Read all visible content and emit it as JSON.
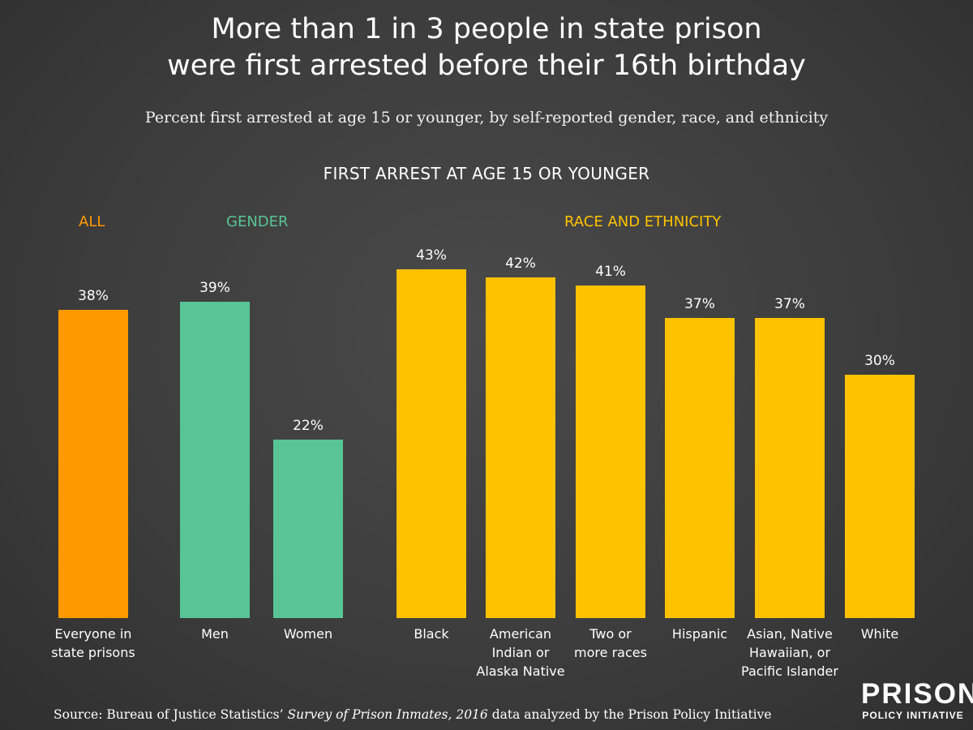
{
  "header": {
    "title_line1": "More than 1 in 3 people in state prison",
    "title_line2": "were first arrested before their 16th birthday",
    "subtitle": "Percent first arrested at age 15 or younger, by self-reported gender, race, and ethnicity",
    "section_title": "FIRST ARREST AT AGE 15 OR YOUNGER"
  },
  "groups": [
    {
      "label": "ALL",
      "color": "#ff9900"
    },
    {
      "label": "GENDER",
      "color": "#57c596"
    },
    {
      "label": "RACE AND ETHNICITY",
      "color": "#ffc200"
    }
  ],
  "chart_data": {
    "type": "bar",
    "title": "FIRST ARREST AT AGE 15 OR YOUNGER",
    "categories": [
      "Everyone in state prisons",
      "Men",
      "Women",
      "Black",
      "American Indian or Alaska Native",
      "Two or more races",
      "Hispanic",
      "Asian, Native Hawaiian, or Pacific Islander",
      "White"
    ],
    "category_lines": [
      [
        "Everyone in",
        "state prisons"
      ],
      [
        "Men"
      ],
      [
        "Women"
      ],
      [
        "Black"
      ],
      [
        "American",
        "Indian or",
        "Alaska Native"
      ],
      [
        "Two or",
        "more races"
      ],
      [
        "Hispanic"
      ],
      [
        "Asian, Native",
        "Hawaiian, or",
        "Pacific Islander"
      ],
      [
        "White"
      ]
    ],
    "values": [
      38,
      39,
      22,
      43,
      42,
      41,
      37,
      37,
      30
    ],
    "labels": [
      "38%",
      "39%",
      "22%",
      "43%",
      "42%",
      "41%",
      "37%",
      "37%",
      "30%"
    ],
    "groups": [
      "ALL",
      "GENDER",
      "GENDER",
      "RACE AND ETHNICITY",
      "RACE AND ETHNICITY",
      "RACE AND ETHNICITY",
      "RACE AND ETHNICITY",
      "RACE AND ETHNICITY",
      "RACE AND ETHNICITY"
    ],
    "colors": [
      "#ff9900",
      "#57c596",
      "#57c596",
      "#ffc200",
      "#ffc200",
      "#ffc200",
      "#ffc200",
      "#ffc200",
      "#ffc200"
    ],
    "xlabel": "",
    "ylabel": "",
    "ylim": [
      0,
      50
    ],
    "grid": false,
    "legend": "none"
  },
  "footer": {
    "source_prefix": "Source: Bureau of Justice Statistics’ ",
    "source_italic": "Survey of Prison Inmates, 2016",
    "source_suffix": " data analyzed by the Prison Policy Initiative"
  },
  "logo": {
    "main": "PRISON",
    "sub": "POLICY INITIATIVE"
  }
}
